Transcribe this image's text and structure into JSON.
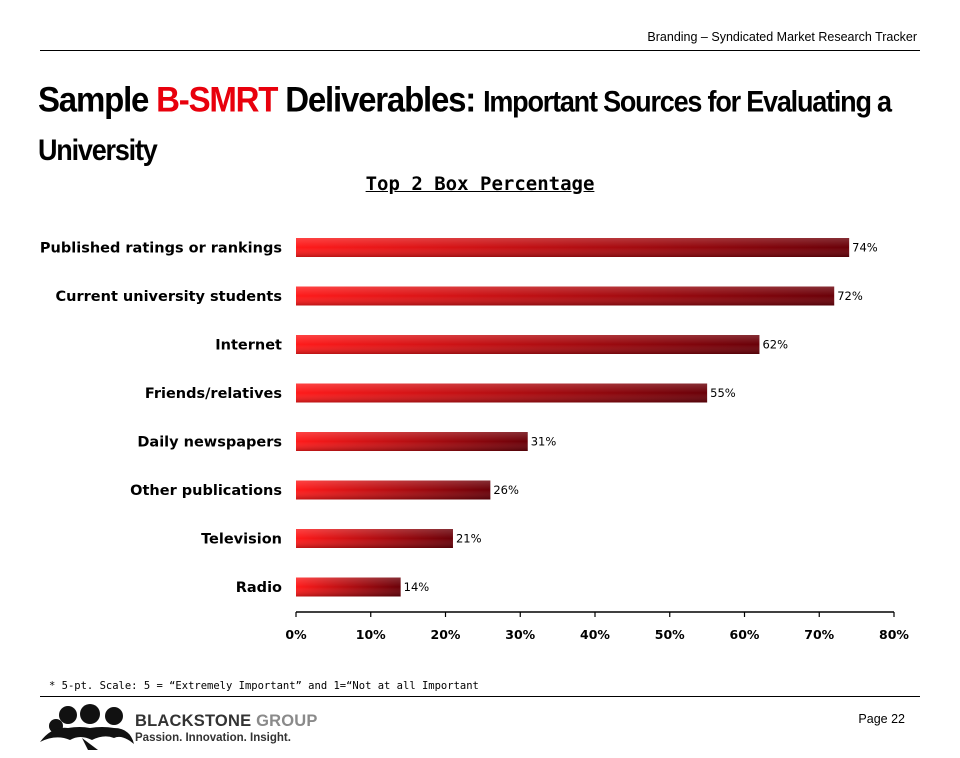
{
  "header": {
    "text": "Branding – Syndicated Market Research Tracker"
  },
  "title": {
    "part1": "Sample ",
    "accent": "B-SMRT",
    "part2": " Deliverables: ",
    "part3": "Important Sources for Evaluating a University",
    "accent_color": "#e8000c"
  },
  "chart_data": {
    "type": "bar",
    "orientation": "horizontal",
    "title": "Top 2 Box Percentage",
    "categories": [
      "Published ratings or rankings",
      "Current university students",
      "Internet",
      "Friends/relatives",
      "Daily newspapers",
      "Other publications",
      "Television",
      "Radio"
    ],
    "values": [
      74,
      72,
      62,
      55,
      31,
      26,
      21,
      14
    ],
    "value_labels": [
      "74%",
      "72%",
      "62%",
      "55%",
      "31%",
      "26%",
      "21%",
      "14%"
    ],
    "xlim": [
      0,
      80
    ],
    "xticks": [
      "0%",
      "10%",
      "20%",
      "30%",
      "40%",
      "50%",
      "60%",
      "70%",
      "80%"
    ],
    "grid": false,
    "bar_colors": {
      "start": "#ff1a1a",
      "end": "#6a0008"
    }
  },
  "footnote": "* 5-pt. Scale: 5 = “Extremely Important” and 1=“Not at all Important",
  "footer": {
    "page": "Page 22",
    "logo_name_a": "BLACKSTONE",
    "logo_name_b": "GROUP",
    "logo_tagline": "Passion. Innovation. Insight."
  }
}
